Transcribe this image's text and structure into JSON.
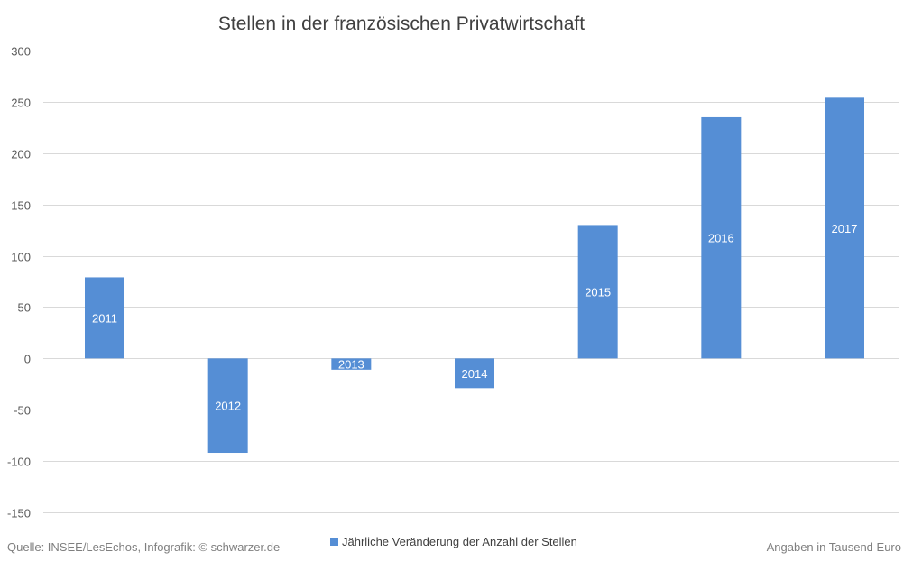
{
  "chart_data": {
    "type": "bar",
    "title": "Stellen in der französischen Privatwirtschaft",
    "categories": [
      "2011",
      "2012",
      "2013",
      "2014",
      "2015",
      "2016",
      "2017"
    ],
    "series": [
      {
        "name": "Jährliche Veränderung der Anzahl der Stellen",
        "values": [
          79,
          -92,
          -11,
          -29,
          130,
          235,
          254
        ]
      }
    ],
    "ylim": [
      -150,
      300
    ],
    "yticks": [
      "300",
      "250",
      "200",
      "150",
      "100",
      "50",
      "0",
      "-50",
      "-100",
      "-150"
    ],
    "grid": true,
    "legend_position": "bottom",
    "bar_color": "#558ed5",
    "bar_label_color": "#ffffff",
    "grid_color": "#d9d9d9"
  },
  "footer": {
    "source": "Quelle: INSEE/LesEchos, Infografik: © schwarzer.de",
    "units": "Angaben in Tausend Euro"
  }
}
